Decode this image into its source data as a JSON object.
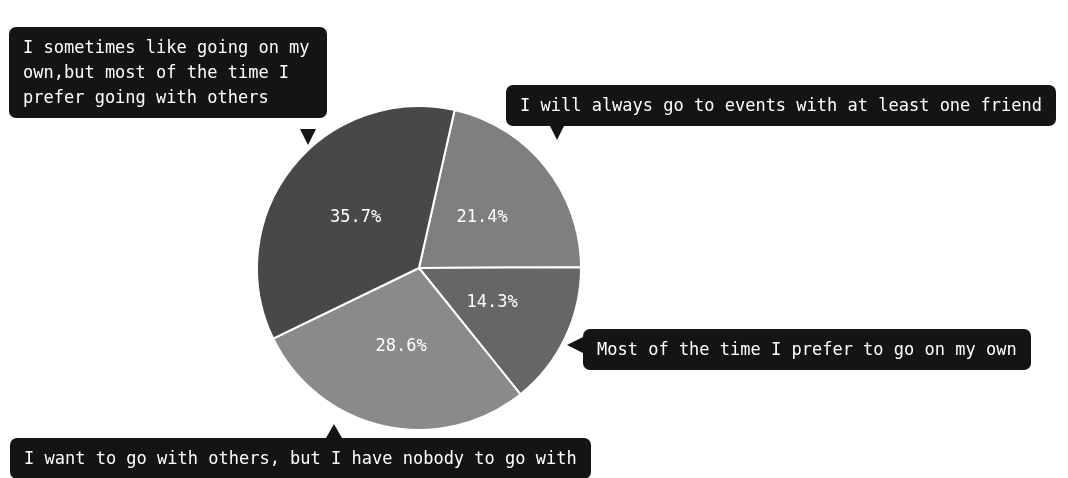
{
  "chart_data": {
    "type": "pie",
    "categories": [
      "I will always go to events with at least one friend",
      "Most of the time I prefer to go on my own",
      "I want to go with others, but I have nobody to go with",
      "I sometimes like going on my own,but most of the time I prefer going with others"
    ],
    "values": [
      21.4,
      14.3,
      28.6,
      35.7
    ],
    "value_labels": [
      "21.4%",
      "14.3%",
      "28.6%",
      "35.7%"
    ],
    "colors": [
      "#7f7f7f",
      "#666666",
      "#8a8a8a",
      "#484848"
    ],
    "legend": false
  }
}
